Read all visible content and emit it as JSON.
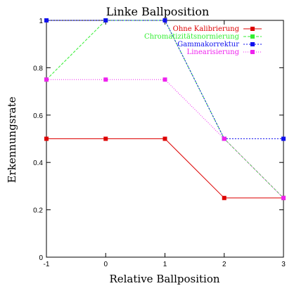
{
  "chart_data": {
    "type": "line",
    "title": "Linke Ballposition",
    "xlabel": "Relative Ballposition",
    "ylabel": "Erkennungsrate",
    "xlim": [
      -1,
      3
    ],
    "ylim": [
      0,
      1
    ],
    "x_ticks": [
      -1,
      0,
      1,
      2,
      3
    ],
    "x_tick_labels": [
      "-1",
      "0",
      "1",
      "2",
      "3"
    ],
    "y_ticks": [
      0,
      0.2,
      0.4,
      0.6,
      0.8,
      1
    ],
    "y_tick_labels": [
      "0",
      "0.2",
      "0.4",
      "0.6",
      "0.8",
      "1"
    ],
    "grid": false,
    "legend_position": "top-right",
    "x": [
      -1,
      0,
      1,
      2,
      3
    ],
    "series": [
      {
        "name": "Ohne Kalibrierung",
        "color": "#dd0000",
        "dash": "solid",
        "values": [
          0.5,
          0.5,
          0.5,
          0.25,
          0.25
        ]
      },
      {
        "name": "Chromatizitätsnormierung",
        "color": "#33ee33",
        "dash": "dashed",
        "values": [
          0.75,
          1.0,
          1.0,
          0.5,
          0.25
        ]
      },
      {
        "name": "Gammakorrektur",
        "color": "#1010ee",
        "dash": "dotted",
        "values": [
          1.0,
          1.0,
          1.0,
          0.5,
          0.5
        ]
      },
      {
        "name": "Linearisierung",
        "color": "#ee22ee",
        "dash": "finedotted",
        "values": [
          0.75,
          0.75,
          0.75,
          0.5,
          0.25
        ]
      }
    ]
  }
}
